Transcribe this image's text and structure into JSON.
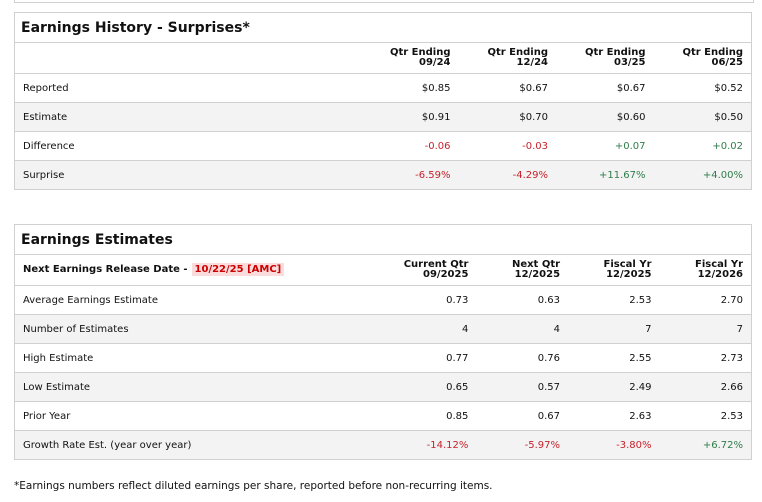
{
  "history": {
    "title": "Earnings History - Surprises*",
    "columns": [
      [
        "Qtr Ending",
        "09/24"
      ],
      [
        "Qtr Ending",
        "12/24"
      ],
      [
        "Qtr Ending",
        "03/25"
      ],
      [
        "Qtr Ending",
        "06/25"
      ]
    ],
    "rows": [
      {
        "label": "Reported",
        "values": [
          "$0.85",
          "$0.67",
          "$0.67",
          "$0.52"
        ],
        "tone": [
          "",
          "",
          "",
          ""
        ]
      },
      {
        "label": "Estimate",
        "values": [
          "$0.91",
          "$0.70",
          "$0.60",
          "$0.50"
        ],
        "tone": [
          "",
          "",
          "",
          ""
        ]
      },
      {
        "label": "Difference",
        "values": [
          "-0.06",
          "-0.03",
          "+0.07",
          "+0.02"
        ],
        "tone": [
          "neg",
          "neg",
          "pos",
          "pos"
        ]
      },
      {
        "label": "Surprise",
        "values": [
          "-6.59%",
          "-4.29%",
          "+11.67%",
          "+4.00%"
        ],
        "tone": [
          "neg",
          "neg",
          "pos",
          "pos"
        ]
      }
    ]
  },
  "estimates": {
    "title": "Earnings Estimates",
    "release_label": "Next Earnings Release Date -",
    "release_date": "10/22/25 [AMC]",
    "columns": [
      [
        "Current Qtr",
        "09/2025"
      ],
      [
        "Next Qtr",
        "12/2025"
      ],
      [
        "Fiscal Yr",
        "12/2025"
      ],
      [
        "Fiscal Yr",
        "12/2026"
      ]
    ],
    "rows": [
      {
        "label": "Average Earnings Estimate",
        "values": [
          "0.73",
          "0.63",
          "2.53",
          "2.70"
        ],
        "tone": [
          "",
          "",
          "",
          ""
        ]
      },
      {
        "label": "Number of Estimates",
        "values": [
          "4",
          "4",
          "7",
          "7"
        ],
        "tone": [
          "",
          "",
          "",
          ""
        ]
      },
      {
        "label": "High Estimate",
        "values": [
          "0.77",
          "0.76",
          "2.55",
          "2.73"
        ],
        "tone": [
          "",
          "",
          "",
          ""
        ]
      },
      {
        "label": "Low Estimate",
        "values": [
          "0.65",
          "0.57",
          "2.49",
          "2.66"
        ],
        "tone": [
          "",
          "",
          "",
          ""
        ]
      },
      {
        "label": "Prior Year",
        "values": [
          "0.85",
          "0.67",
          "2.63",
          "2.53"
        ],
        "tone": [
          "",
          "",
          "",
          ""
        ]
      },
      {
        "label": "Growth Rate Est. (year over year)",
        "values": [
          "-14.12%",
          "-5.97%",
          "-3.80%",
          "+6.72%"
        ],
        "tone": [
          "neg",
          "neg",
          "neg",
          "pos"
        ]
      }
    ]
  },
  "footnote": "*Earnings numbers reflect diluted earnings per share, reported before non-recurring items.",
  "colors": {
    "negative": "#c8222c",
    "positive": "#2f7d4a",
    "highlight": "#fbdcdc"
  }
}
